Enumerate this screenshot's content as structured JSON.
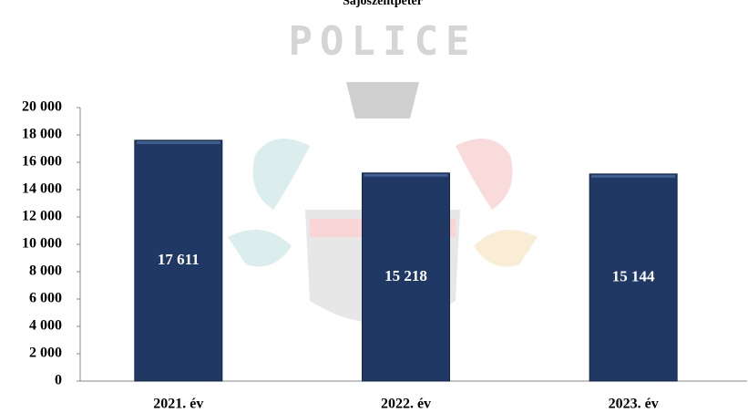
{
  "chart_data": {
    "type": "bar",
    "title": "Sajószentpéter",
    "watermark": "POLICE",
    "categories": [
      "2021. év",
      "2022. év",
      "2023. év"
    ],
    "values": [
      17611,
      15218,
      15144
    ],
    "value_labels": [
      "17 611",
      "15 218",
      "15 144"
    ],
    "color": "#1f3864",
    "ylim": [
      0,
      20000
    ],
    "yticks": [
      0,
      {
        "value": 2000,
        "label": "2 000"
      },
      {
        "value": 4000,
        "label": "4 000"
      },
      {
        "value": 6000,
        "label": "6 000"
      },
      {
        "value": 8000,
        "label": "8 000"
      },
      {
        "value": 10000,
        "label": "10 000"
      },
      {
        "value": 12000,
        "label": "12 000"
      },
      {
        "value": 14000,
        "label": "14 000"
      },
      {
        "value": 16000,
        "label": "16 000"
      },
      {
        "value": 18000,
        "label": "18 000"
      },
      {
        "value": 20000,
        "label": "20 000"
      }
    ],
    "grid": false
  }
}
